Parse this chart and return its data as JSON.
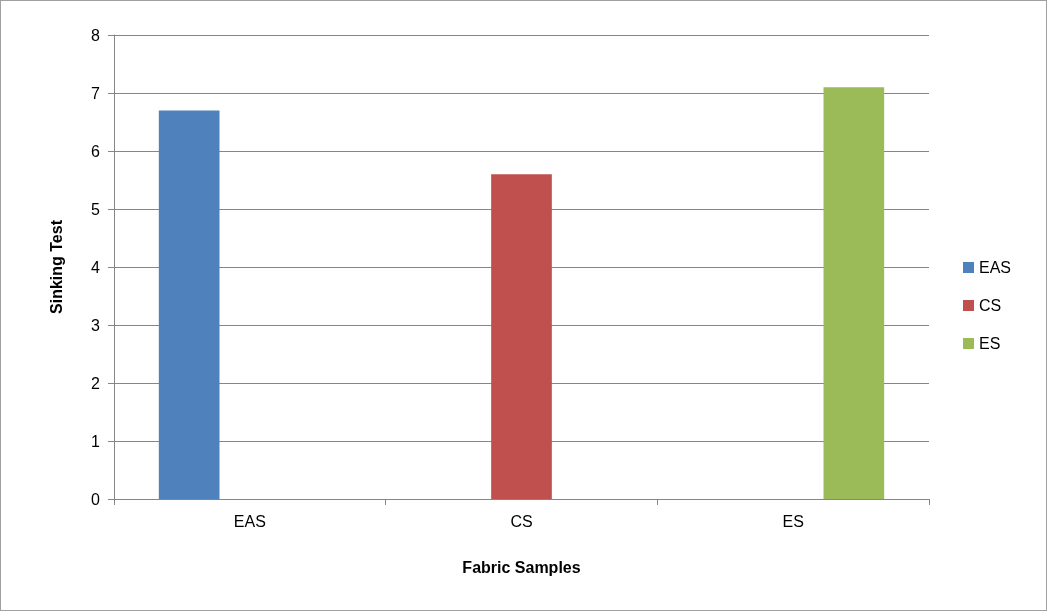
{
  "chart_data": {
    "type": "bar",
    "xlabel": "Fabric Samples",
    "ylabel": "Sinking Test",
    "categories": [
      "EAS",
      "CS",
      "ES"
    ],
    "series": [
      {
        "name": "EAS",
        "color": "#4f81bd",
        "values": [
          6.7,
          null,
          null
        ]
      },
      {
        "name": "CS",
        "color": "#c0504d",
        "values": [
          null,
          5.6,
          null
        ]
      },
      {
        "name": "ES",
        "color": "#9bbb59",
        "values": [
          null,
          null,
          7.1
        ]
      }
    ],
    "ylim": [
      0,
      8
    ],
    "yticks": [
      0,
      1,
      2,
      3,
      4,
      5,
      6,
      7,
      8
    ],
    "grid": "y",
    "legend": "right"
  }
}
